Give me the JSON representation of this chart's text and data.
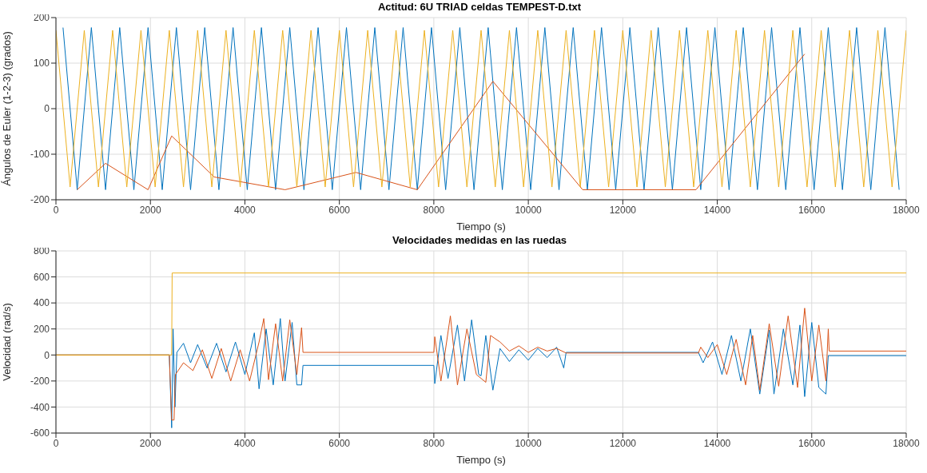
{
  "chart_data": [
    {
      "type": "line",
      "title": "Actitud: 6U TRIAD celdas TEMPEST-D.txt",
      "xlabel": "Tiempo (s)",
      "ylabel": "Ángulos de Euler (1-2-3) (grados)",
      "xlim": [
        0,
        18000
      ],
      "xticks": [
        0,
        2000,
        4000,
        6000,
        8000,
        10000,
        12000,
        14000,
        16000,
        18000
      ],
      "ylim": [
        -200,
        200
      ],
      "yticks": [
        -200,
        -100,
        0,
        100,
        200
      ],
      "grid": true,
      "series": [
        {
          "color": "#0072bd",
          "x": [
            150,
            450,
            750,
            1050,
            1350,
            1650,
            1950,
            2250,
            2550,
            2850,
            3150,
            3450,
            3750,
            4050,
            4350,
            4650,
            4950,
            5250,
            5550,
            5850,
            6150,
            6450,
            6750,
            7050,
            7350,
            7650,
            7950,
            8250,
            8550,
            8850,
            9150,
            9450,
            9750,
            10050,
            10350,
            10650,
            10950,
            11250,
            11550,
            11850,
            12150,
            12450,
            12750,
            13050,
            13350,
            13650,
            13950,
            14250,
            14550,
            14850,
            15150,
            15450,
            15750,
            16050,
            16350,
            16650,
            16950,
            17250,
            17550,
            17850
          ],
          "values": [
            178,
            -178,
            178,
            -178,
            178,
            -178,
            178,
            -178,
            178,
            -178,
            178,
            -178,
            178,
            -178,
            178,
            -178,
            178,
            -178,
            178,
            -178,
            178,
            -178,
            178,
            -178,
            178,
            -178,
            178,
            -178,
            178,
            -178,
            178,
            -178,
            178,
            -178,
            178,
            -178,
            178,
            -178,
            178,
            -178,
            178,
            -178,
            178,
            -178,
            178,
            -178,
            178,
            -178,
            178,
            -178,
            178,
            -178,
            178,
            -178,
            178,
            -178,
            178,
            -178,
            178,
            -178
          ]
        },
        {
          "color": "#d95319",
          "x": [
            450,
            1050,
            1950,
            2450,
            3350,
            4850,
            6350,
            7650,
            9250,
            11150,
            13550,
            15850
          ],
          "values": [
            -178,
            -120,
            -178,
            -60,
            -150,
            -178,
            -140,
            -178,
            60,
            -178,
            -178,
            120
          ]
        },
        {
          "color": "#edb120",
          "x": [
            0,
            300,
            600,
            900,
            1200,
            1500,
            1800,
            2100,
            2400,
            2700,
            3000,
            3300,
            3600,
            3900,
            4200,
            4500,
            4800,
            5100,
            5400,
            5700,
            6000,
            6300,
            6600,
            6900,
            7200,
            7500,
            7800,
            8100,
            8400,
            8700,
            9000,
            9300,
            9600,
            9900,
            10200,
            10500,
            10800,
            11100,
            11400,
            11700,
            12000,
            12300,
            12600,
            12900,
            13200,
            13500,
            13800,
            14100,
            14400,
            14700,
            15000,
            15300,
            15600,
            15900,
            16200,
            16500,
            16800,
            17100,
            17400,
            17700,
            18000
          ],
          "values": [
            172,
            -172,
            172,
            -172,
            172,
            -172,
            172,
            -172,
            172,
            -172,
            172,
            -172,
            172,
            -172,
            172,
            -172,
            172,
            -172,
            172,
            -172,
            172,
            -172,
            172,
            -172,
            172,
            -172,
            172,
            -172,
            172,
            -172,
            172,
            -172,
            172,
            -172,
            172,
            -172,
            172,
            -172,
            172,
            -172,
            172,
            -172,
            172,
            -172,
            172,
            -172,
            172,
            -172,
            172,
            -172,
            172,
            -172,
            172,
            -172,
            172,
            -172,
            172,
            -172,
            172,
            -172,
            172
          ]
        }
      ]
    },
    {
      "type": "line",
      "title": "Velocidades medidas en las ruedas",
      "xlabel": "Tiempo (s)",
      "ylabel": "Velocidad (rad/s)",
      "xlim": [
        0,
        18000
      ],
      "xticks": [
        0,
        2000,
        4000,
        6000,
        8000,
        10000,
        12000,
        14000,
        16000,
        18000
      ],
      "ylim": [
        -600,
        800
      ],
      "yticks": [
        -600,
        -400,
        -200,
        0,
        200,
        400,
        600,
        800
      ],
      "grid": true,
      "series": [
        {
          "color": "#0072bd",
          "x": [
            0,
            2400,
            2450,
            2480,
            2520,
            2560,
            2700,
            2850,
            3000,
            3200,
            3400,
            3600,
            3800,
            4000,
            4200,
            4300,
            4450,
            4600,
            4750,
            4850,
            5000,
            5100,
            5200,
            5230,
            8000,
            8020,
            8150,
            8300,
            8500,
            8650,
            8800,
            8950,
            9000,
            9100,
            9250,
            9400,
            9600,
            9800,
            10000,
            10200,
            10400,
            10600,
            10750,
            10800,
            13600,
            13700,
            13900,
            14100,
            14300,
            14500,
            14700,
            14900,
            15100,
            15200,
            15400,
            15600,
            15750,
            15850,
            16000,
            16150,
            16300,
            16350,
            18000
          ],
          "values": [
            0,
            0,
            -560,
            200,
            -400,
            20,
            90,
            -60,
            80,
            -100,
            90,
            -130,
            100,
            -150,
            170,
            -260,
            200,
            -230,
            280,
            -200,
            250,
            -230,
            -230,
            -80,
            -80,
            -220,
            150,
            -180,
            230,
            -200,
            270,
            -150,
            -160,
            150,
            -270,
            50,
            -50,
            40,
            -40,
            50,
            -20,
            60,
            -100,
            20,
            20,
            -60,
            100,
            -150,
            150,
            -200,
            200,
            -300,
            190,
            -300,
            200,
            -230,
            230,
            -320,
            250,
            -250,
            -300,
            -5,
            -5
          ]
        },
        {
          "color": "#d95319",
          "x": [
            0,
            2400,
            2450,
            2500,
            2530,
            2700,
            2900,
            3100,
            3300,
            3500,
            3700,
            3900,
            4100,
            4300,
            4400,
            4500,
            4650,
            4800,
            4950,
            5100,
            5200,
            5230,
            8000,
            8020,
            8150,
            8350,
            8500,
            8700,
            8900,
            9100,
            9200,
            9400,
            9600,
            9800,
            10000,
            10200,
            10400,
            10600,
            10800,
            13600,
            13650,
            13800,
            14000,
            14200,
            14400,
            14600,
            14750,
            14900,
            15100,
            15300,
            15500,
            15700,
            15850,
            16000,
            16150,
            16300,
            16350,
            16370,
            18000
          ],
          "values": [
            0,
            0,
            -500,
            -500,
            -150,
            -60,
            -120,
            40,
            -180,
            50,
            -200,
            40,
            -200,
            100,
            280,
            -190,
            240,
            -200,
            270,
            -150,
            210,
            20,
            20,
            140,
            -200,
            300,
            -230,
            200,
            -150,
            -210,
            150,
            100,
            30,
            70,
            20,
            60,
            30,
            50,
            15,
            15,
            60,
            -20,
            80,
            -150,
            120,
            -230,
            150,
            -270,
            240,
            -240,
            300,
            -250,
            360,
            -200,
            230,
            -200,
            200,
            30,
            30
          ]
        },
        {
          "color": "#edb120",
          "x": [
            0,
            2450,
            2460,
            18000
          ],
          "values": [
            0,
            0,
            630,
            630
          ]
        }
      ]
    }
  ]
}
